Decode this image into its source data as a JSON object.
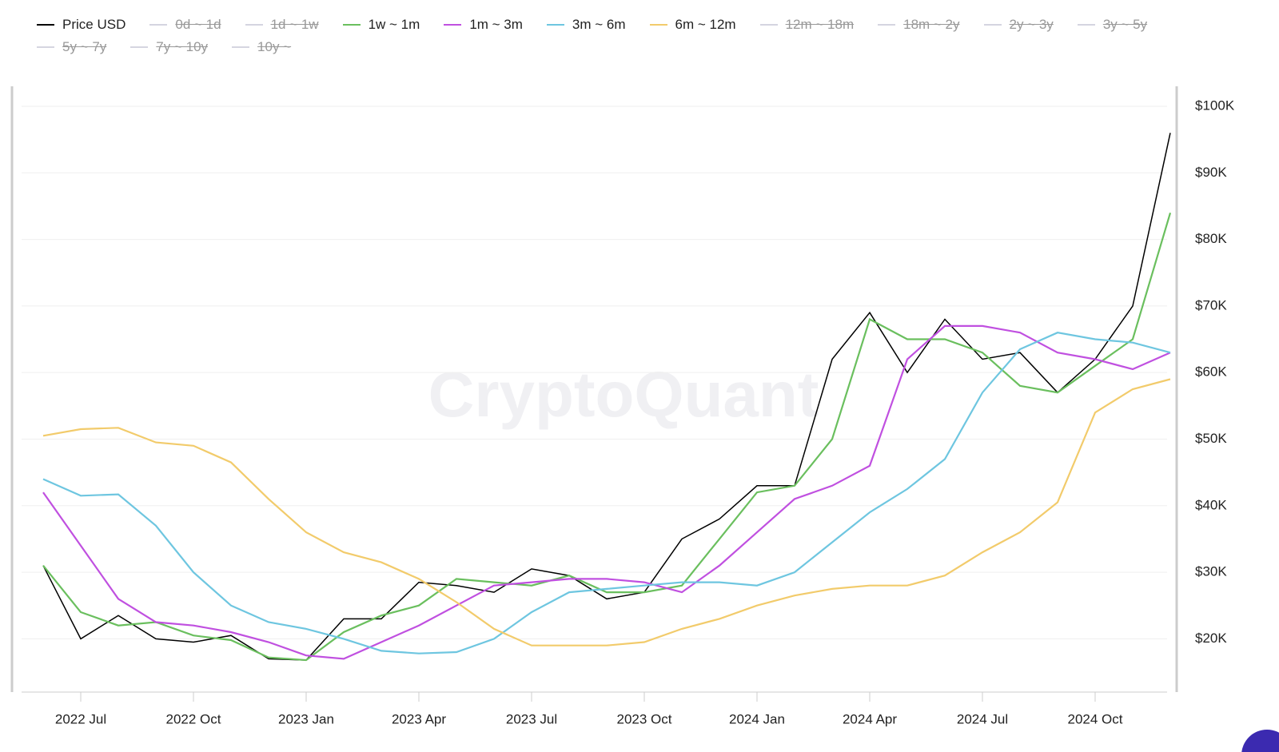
{
  "chart_data": {
    "type": "line",
    "watermark": "CryptoQuant",
    "x": [
      "2022-06",
      "2022-07",
      "2022-08",
      "2022-09",
      "2022-10",
      "2022-11",
      "2022-12",
      "2023-01",
      "2023-02",
      "2023-03",
      "2023-04",
      "2023-05",
      "2023-06",
      "2023-07",
      "2023-08",
      "2023-09",
      "2023-10",
      "2023-11",
      "2023-12",
      "2024-01",
      "2024-02",
      "2024-03",
      "2024-04",
      "2024-05",
      "2024-06",
      "2024-07",
      "2024-08",
      "2024-09",
      "2024-10",
      "2024-11",
      "2024-12"
    ],
    "xlim": [
      "2022-06",
      "2024-12"
    ],
    "xticks": [
      {
        "value": "2022-07",
        "label": "2022 Jul"
      },
      {
        "value": "2022-10",
        "label": "2022 Oct"
      },
      {
        "value": "2023-01",
        "label": "2023 Jan"
      },
      {
        "value": "2023-04",
        "label": "2023 Apr"
      },
      {
        "value": "2023-07",
        "label": "2023 Jul"
      },
      {
        "value": "2023-10",
        "label": "2023 Oct"
      },
      {
        "value": "2024-01",
        "label": "2024 Jan"
      },
      {
        "value": "2024-04",
        "label": "2024 Apr"
      },
      {
        "value": "2024-07",
        "label": "2024 Jul"
      },
      {
        "value": "2024-10",
        "label": "2024 Oct"
      }
    ],
    "ylim": [
      12000,
      103000
    ],
    "yticks": [
      {
        "value": 20000,
        "label": "$20K"
      },
      {
        "value": 30000,
        "label": "$30K"
      },
      {
        "value": 40000,
        "label": "$40K"
      },
      {
        "value": 50000,
        "label": "$50K"
      },
      {
        "value": 60000,
        "label": "$60K"
      },
      {
        "value": 70000,
        "label": "$70K"
      },
      {
        "value": 80000,
        "label": "$80K"
      },
      {
        "value": 90000,
        "label": "$90K"
      },
      {
        "value": 100000,
        "label": "$100K"
      }
    ],
    "grid": true,
    "series": [
      {
        "name": "Price USD",
        "color": "#000000",
        "values": [
          31000,
          20000,
          23500,
          20000,
          19500,
          20500,
          17000,
          16800,
          23000,
          23000,
          28500,
          28000,
          27000,
          30500,
          29500,
          26000,
          27000,
          35000,
          38000,
          43000,
          43000,
          62000,
          69000,
          60000,
          68000,
          62000,
          63000,
          57000,
          62000,
          70000,
          96000
        ]
      },
      {
        "name": "0d ~ 1d",
        "color": "#d5d5e0",
        "hidden": true
      },
      {
        "name": "1d ~ 1w",
        "color": "#d5d5e0",
        "hidden": true
      },
      {
        "name": "1w ~ 1m",
        "color": "#6abf5e",
        "values": [
          31000,
          24000,
          22000,
          22500,
          20500,
          19800,
          17200,
          16800,
          21000,
          23500,
          25000,
          29000,
          28500,
          28000,
          29500,
          27000,
          27000,
          28000,
          35000,
          42000,
          43000,
          50000,
          68000,
          65000,
          65000,
          63000,
          58000,
          57000,
          61000,
          65000,
          84000
        ]
      },
      {
        "name": "1m ~ 3m",
        "color": "#c050e0",
        "values": [
          42000,
          34000,
          26000,
          22500,
          22000,
          21000,
          19500,
          17500,
          17000,
          19500,
          22000,
          25000,
          28000,
          28500,
          29000,
          29000,
          28500,
          27000,
          31000,
          36000,
          41000,
          43000,
          46000,
          62000,
          67000,
          67000,
          66000,
          63000,
          62000,
          60500,
          63000
        ]
      },
      {
        "name": "3m ~ 6m",
        "color": "#6ec6e0",
        "values": [
          44000,
          41500,
          41700,
          37000,
          30000,
          25000,
          22500,
          21500,
          20000,
          18200,
          17800,
          18000,
          20000,
          24000,
          27000,
          27500,
          28000,
          28500,
          28500,
          28000,
          30000,
          34500,
          39000,
          42500,
          47000,
          57000,
          63500,
          66000,
          65000,
          64500,
          63000
        ]
      },
      {
        "name": "6m ~ 12m",
        "color": "#f2cb6b",
        "values": [
          50500,
          51500,
          51700,
          49500,
          49000,
          46500,
          41000,
          36000,
          33000,
          31500,
          29000,
          25500,
          21500,
          19000,
          19000,
          19000,
          19500,
          21500,
          23000,
          25000,
          26500,
          27500,
          28000,
          28000,
          29500,
          33000,
          36000,
          40500,
          54000,
          57500,
          59000
        ]
      },
      {
        "name": "12m ~ 18m",
        "color": "#d5d5e0",
        "hidden": true
      },
      {
        "name": "18m ~ 2y",
        "color": "#d5d5e0",
        "hidden": true
      },
      {
        "name": "2y ~ 3y",
        "color": "#d5d5e0",
        "hidden": true
      },
      {
        "name": "3y ~ 5y",
        "color": "#d5d5e0",
        "hidden": true
      },
      {
        "name": "5y ~ 7y",
        "color": "#d5d5e0",
        "hidden": true
      },
      {
        "name": "7y ~ 10y",
        "color": "#d5d5e0",
        "hidden": true
      },
      {
        "name": "10y ~",
        "color": "#d5d5e0",
        "hidden": true
      }
    ]
  }
}
